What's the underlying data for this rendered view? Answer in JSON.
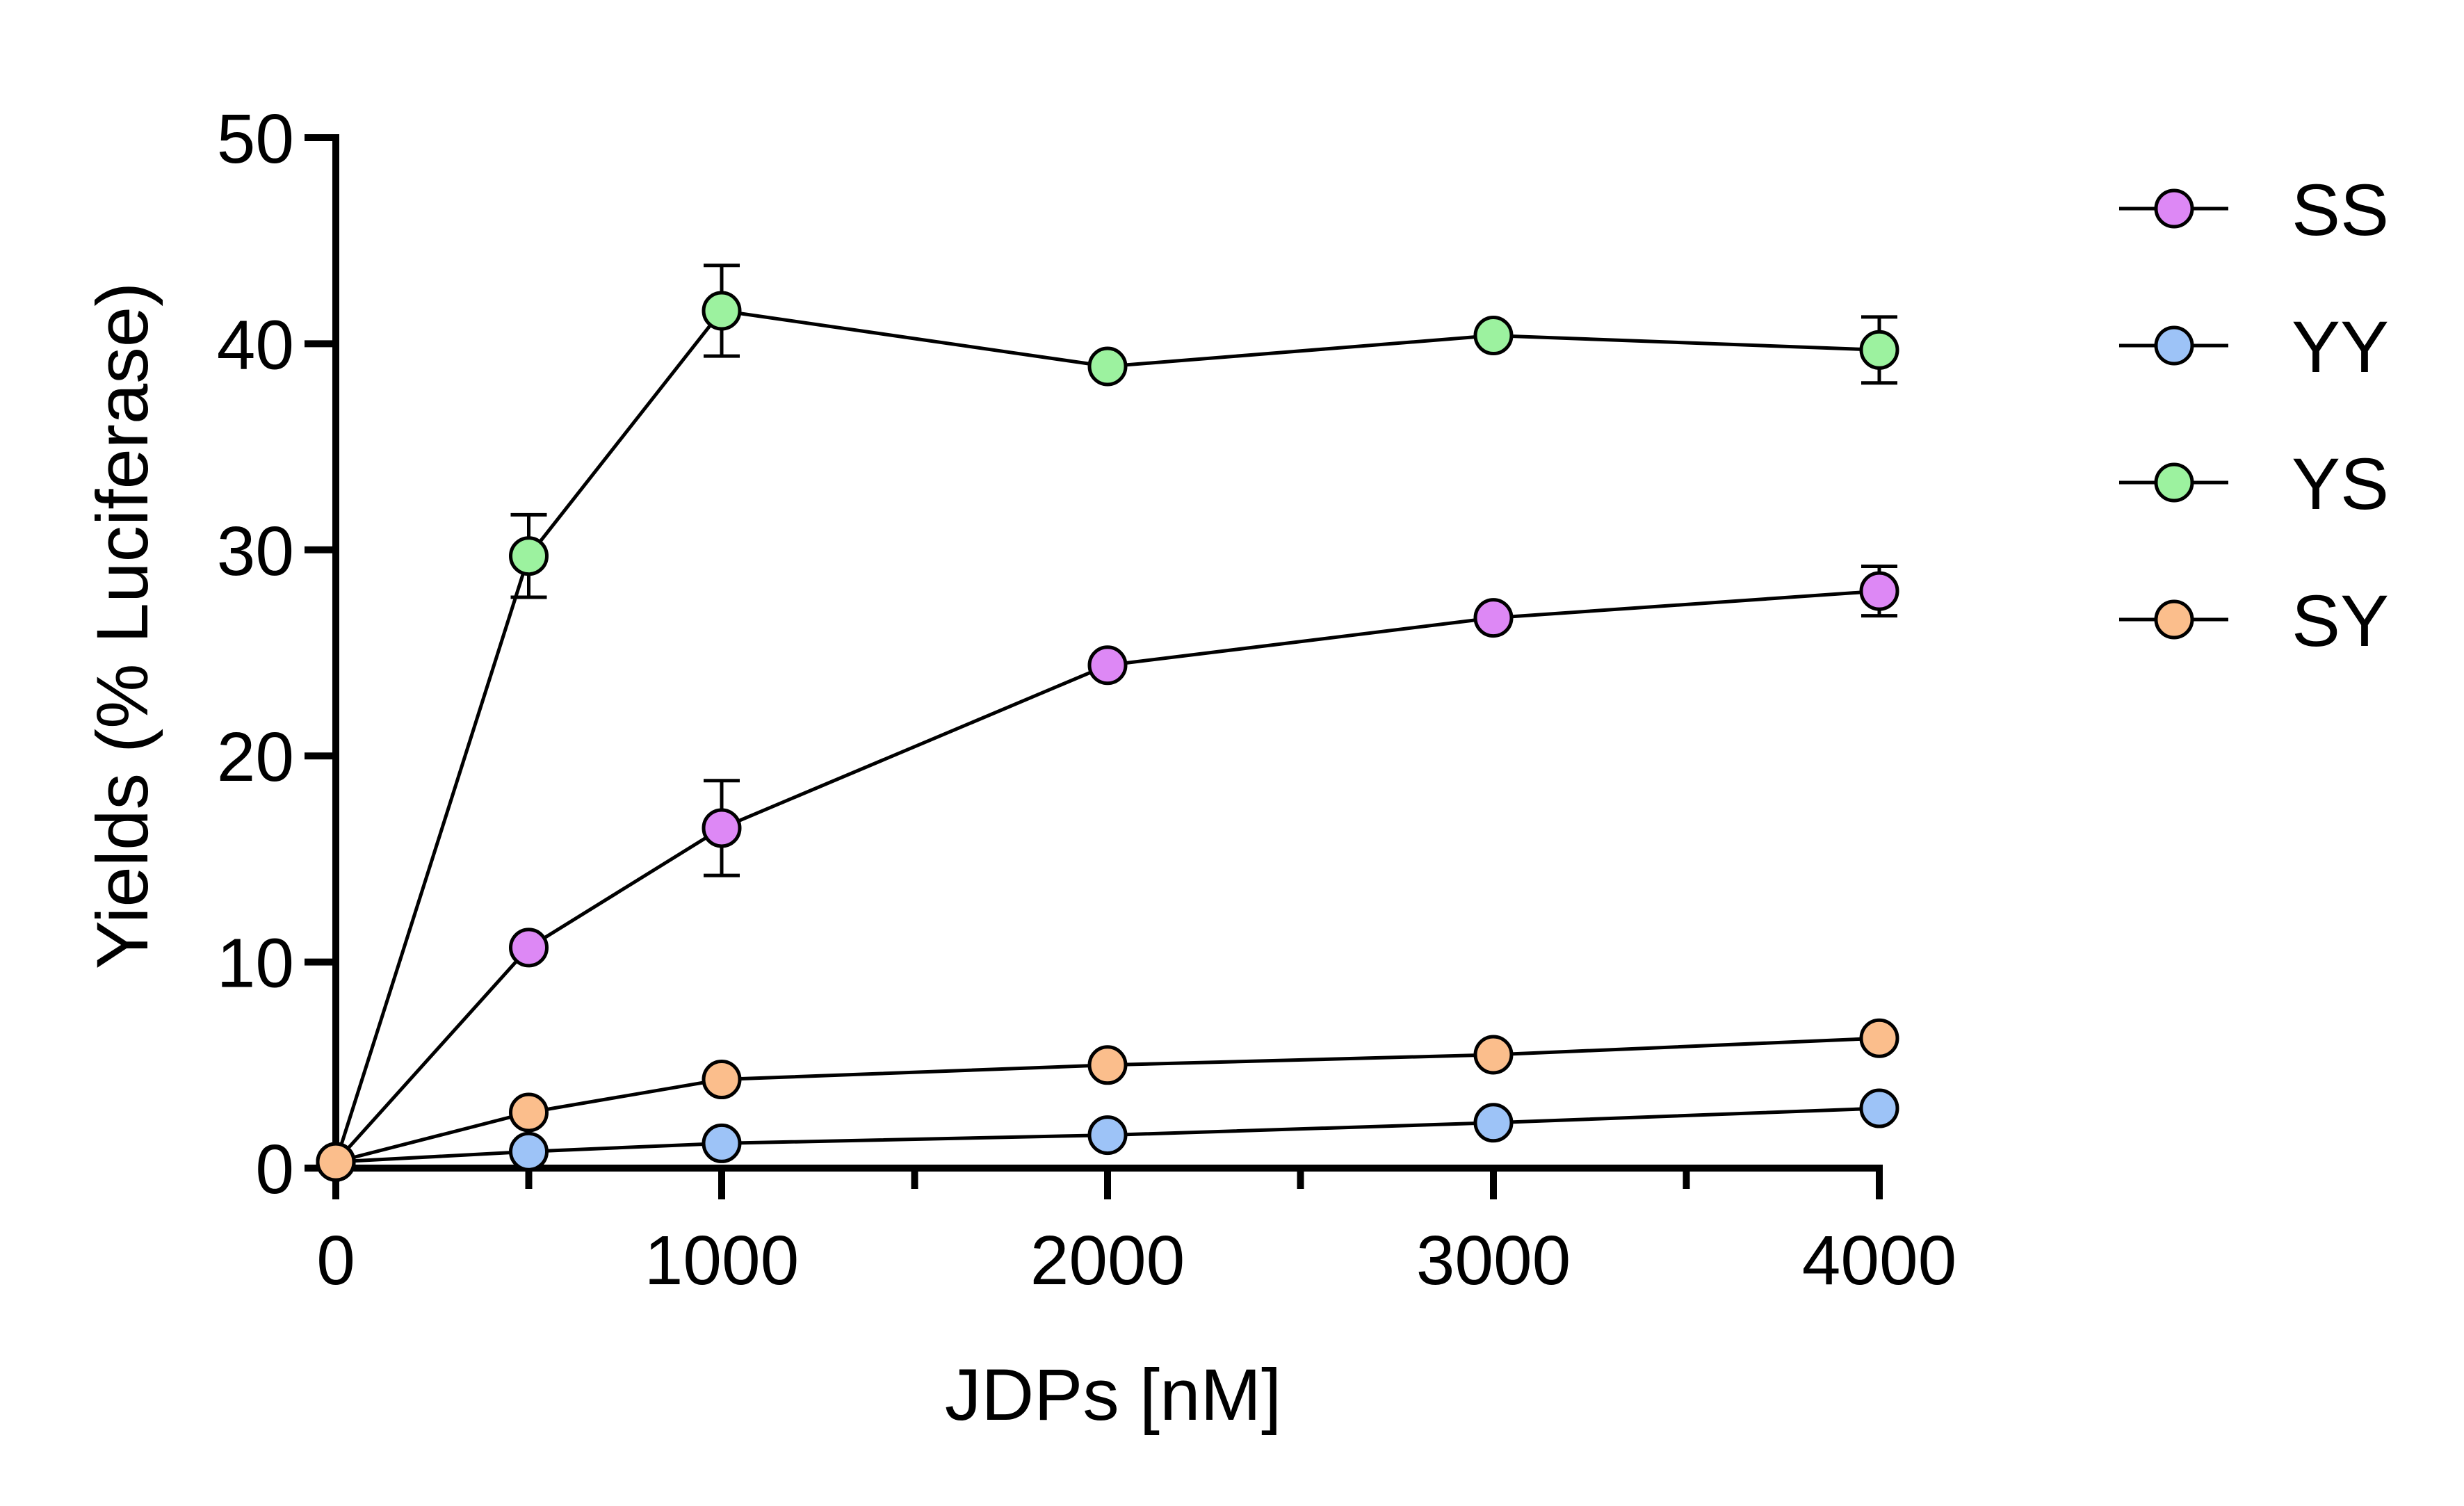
{
  "chart_data": {
    "type": "line",
    "title": "",
    "xlabel": "JDPs [nM]",
    "ylabel": "Yields (% Luciferase)",
    "xlim": [
      0,
      4000
    ],
    "ylim": [
      0,
      50
    ],
    "x_ticks": [
      0,
      1000,
      2000,
      3000,
      4000
    ],
    "x_tick_labels": [
      "0",
      "1000",
      "2000",
      "3000",
      "4000"
    ],
    "x_minor_ticks": [
      500,
      1500,
      2500,
      3500
    ],
    "y_ticks": [
      0,
      10,
      20,
      30,
      40,
      50
    ],
    "y_tick_labels": [
      "0",
      "10",
      "20",
      "30",
      "40",
      "50"
    ],
    "grid": false,
    "legend_position": "top-right",
    "x": [
      0,
      500,
      1000,
      2000,
      3000,
      4000
    ],
    "series": [
      {
        "name": "SS",
        "color": "#dd88f5",
        "values": [
          0.3,
          10.7,
          16.5,
          24.4,
          26.7,
          28.0
        ],
        "errors": [
          0,
          0,
          2.3,
          0,
          0,
          1.2
        ]
      },
      {
        "name": "YY",
        "color": "#9dc3f7",
        "values": [
          0.3,
          0.8,
          1.2,
          1.6,
          2.2,
          2.9
        ],
        "errors": [
          0,
          0,
          0,
          0,
          0,
          0
        ]
      },
      {
        "name": "YS",
        "color": "#9cf29f",
        "values": [
          0.3,
          29.7,
          41.6,
          38.9,
          40.4,
          39.7
        ],
        "errors": [
          0,
          2.0,
          2.2,
          0,
          0,
          1.6
        ]
      },
      {
        "name": "SY",
        "color": "#fbbe8c",
        "values": [
          0.3,
          2.7,
          4.3,
          5.0,
          5.5,
          6.3
        ],
        "errors": [
          0,
          0,
          0,
          0,
          0,
          0
        ]
      }
    ]
  }
}
